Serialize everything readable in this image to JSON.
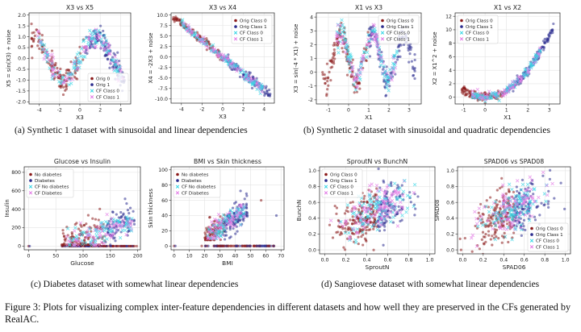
{
  "colors": {
    "orig0": "#8b1a1a",
    "orig1": "#2c2d8f",
    "cf0": "#38d6e6",
    "cf1": "#e27ae6"
  },
  "panels": [
    {
      "title": "X3 vs X5",
      "xlabel": "X3",
      "ylabel": "X5 = sin(X3) + noise",
      "xticks": [
        "-4",
        "-2",
        "0",
        "2",
        "4"
      ],
      "yticks": [
        "-2.0",
        "-1.5",
        "-1.0",
        "-0.5",
        "0.0",
        "0.5",
        "1.0",
        "1.5",
        "2.0"
      ],
      "legend": [
        "Orig 0",
        "Orig 1",
        "CF Class 0",
        "CF Class 1"
      ]
    },
    {
      "title": "X3 vs X4",
      "xlabel": "X3",
      "ylabel": "X4 = -2X3 + noise",
      "xticks": [
        "-4",
        "-2",
        "0",
        "2",
        "4"
      ],
      "yticks": [
        "-10.0",
        "-7.5",
        "-5.0",
        "-2.5",
        "0.0",
        "2.5",
        "5.0",
        "7.5",
        "10.0"
      ],
      "legend": [
        "Orig Class 0",
        "Orig Class 1",
        "CF Class 0",
        "CF Class 1"
      ]
    },
    {
      "title": "X1 vs X3",
      "xlabel": "X1",
      "ylabel": "X3 = sin(-4 * X1) + noise",
      "xticks": [
        "-1",
        "0",
        "1",
        "2",
        "3"
      ],
      "yticks": [
        "-2",
        "-1",
        "0",
        "1",
        "2",
        "3",
        "4"
      ],
      "legend": [
        "Orig Class 0",
        "Orig Class 1",
        "CF Class 0",
        "CF Class 1"
      ]
    },
    {
      "title": "X1 vs X2",
      "xlabel": "X1",
      "ylabel": "X2 = X1^2 + noise",
      "xticks": [
        "-1",
        "0",
        "1",
        "2",
        "3"
      ],
      "yticks": [
        "0",
        "2",
        "4",
        "6",
        "8",
        "10",
        "12"
      ],
      "legend": [
        "Orig Class 0",
        "Orig Class 1",
        "CF Class 0",
        "CF Class 1"
      ]
    },
    {
      "title": "Glucose vs Insulin",
      "xlabel": "Glucose",
      "ylabel": "Insulin",
      "xticks": [
        "0",
        "50",
        "100",
        "150",
        "200"
      ],
      "yticks": [
        "0",
        "200",
        "400",
        "600",
        "800"
      ],
      "legend": [
        "No diabetes",
        "Diabetes",
        "CF No diabetes",
        "CF Diabetes"
      ]
    },
    {
      "title": "BMI vs Skin thickness",
      "xlabel": "BMI",
      "ylabel": "Skin thickness",
      "xticks": [
        "0",
        "10",
        "20",
        "30",
        "40",
        "50",
        "60",
        "70"
      ],
      "yticks": [
        "0",
        "20",
        "40",
        "60",
        "80",
        "100"
      ],
      "legend": [
        "No diabetes",
        "Diabetes",
        "CF No diabetes",
        "CF Diabetes"
      ]
    },
    {
      "title": "SproutN vs BunchN",
      "xlabel": "SproutN",
      "ylabel": "BunchN",
      "xticks": [
        "0.0",
        "0.2",
        "0.4",
        "0.6",
        "0.8",
        "1.0"
      ],
      "yticks": [
        "0.0",
        "0.2",
        "0.4",
        "0.6",
        "0.8",
        "1.0"
      ],
      "legend": [
        "Orig Class 0",
        "Orig Class 1",
        "CF Class 0",
        "CF Class 1"
      ]
    },
    {
      "title": "SPAD06 vs SPAD08",
      "xlabel": "SPAD06",
      "ylabel": "SPAD08",
      "xticks": [
        "0.0",
        "0.2",
        "0.4",
        "0.6",
        "0.8",
        "1.0"
      ],
      "yticks": [
        "0.0",
        "0.2",
        "0.4",
        "0.6",
        "0.8",
        "1.0"
      ],
      "legend": [
        "Orig Class 0",
        "Orig Class 1",
        "CF Class 0",
        "CF Class 1"
      ]
    }
  ],
  "subcaptions": [
    "(a) Synthetic 1 dataset with sinusoidal and linear dependencies",
    "(b) Synthetic 2 dataset with sinusoidal and quadratic dependencies",
    "(c) Diabetes dataset with somewhat linear dependencies",
    "(d) Sangiovese dataset with somewhat linear dependencies"
  ],
  "figure_caption": "Figure 3: Plots for visualizing complex inter-feature dependencies in different datasets and how well they are preserved in the CFs generated by RealAC."
}
